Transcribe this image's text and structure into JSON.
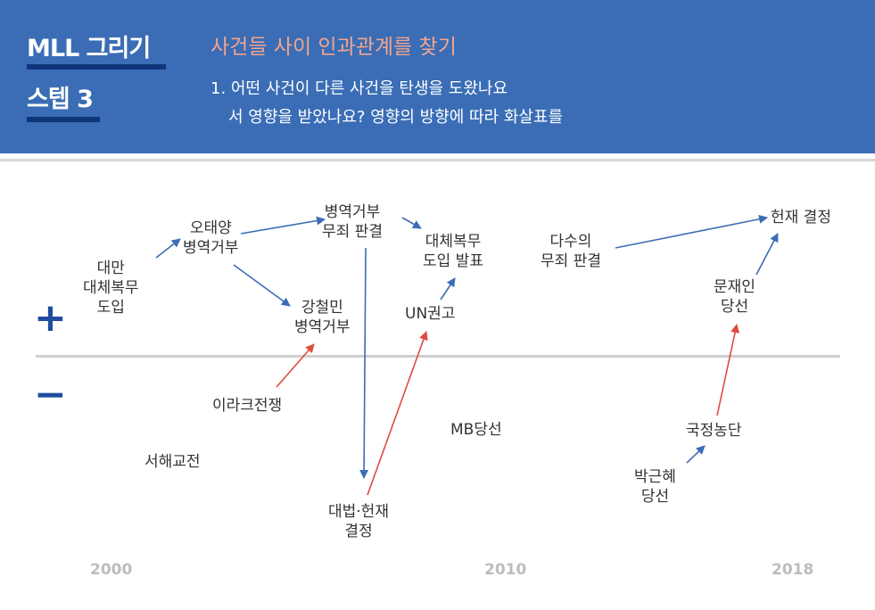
{
  "header": {
    "brand_title": "MLL 그리기",
    "step_title": "스텝 3",
    "main_heading": "사건들 사이 인과관계를 찾기",
    "desc_line1": "1. 어떤 사건이 다른 사건을 탄생을 도왔나요",
    "desc_line2": "서 영향을 받았나요? 영향의 방향에 따라 화살표를"
  },
  "axis": {
    "plus": "+",
    "minus": "−",
    "years": [
      "2000",
      "2010",
      "2018"
    ]
  },
  "events": {
    "taiwan": [
      "대만",
      "대체복무",
      "도입"
    ],
    "otaeyang": [
      "오태양",
      "병역거부"
    ],
    "acquittal1": [
      "병역거부",
      "무죄 판결"
    ],
    "announce": [
      "대체복무",
      "도입 발표"
    ],
    "majority": [
      "다수의",
      "무죄 판결"
    ],
    "constitutional": [
      "헌재 결정"
    ],
    "kangcheol": [
      "강철민",
      "병역거부"
    ],
    "un": [
      "UN권고"
    ],
    "moon": [
      "문재인",
      "당선"
    ],
    "iraq": [
      "이라크전쟁"
    ],
    "mb": [
      "MB당선"
    ],
    "westsea": [
      "서해교전"
    ],
    "scandal": [
      "국정농단"
    ],
    "park": [
      "박근혜",
      "당선"
    ],
    "courts": [
      "대법·헌재",
      "결정"
    ]
  },
  "colors": {
    "header_bg": "#3a6db5",
    "accent_title": "#f4a48f",
    "positive_arrow": "#3a6db5",
    "negative_arrow": "#e04a3f",
    "sign": "#1f4c9e"
  }
}
